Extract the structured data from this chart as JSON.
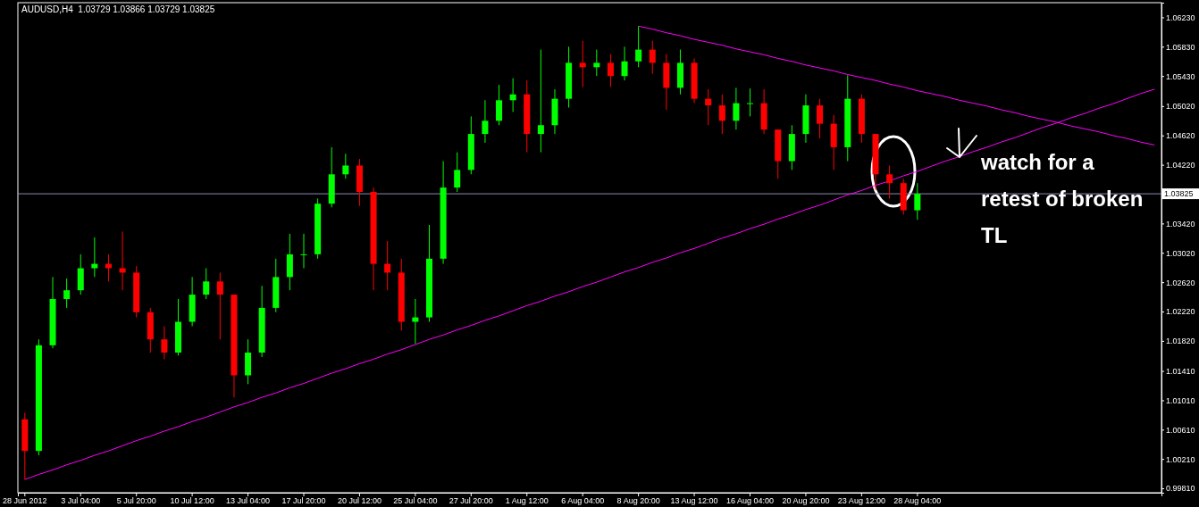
{
  "chart_data": {
    "type": "candlestick",
    "title": "AUDUSD,H4  1.03729 1.03866 1.03729 1.03825",
    "categories": [
      "28 Jun 2012",
      null,
      null,
      null,
      "3 Jul 04:00",
      null,
      null,
      null,
      "5 Jul 20:00",
      null,
      null,
      null,
      "10 Jul 12:00",
      null,
      null,
      null,
      "13 Jul 04:00",
      null,
      null,
      null,
      "17 Jul 20:00",
      null,
      null,
      null,
      "20 Jul 12:00",
      null,
      null,
      null,
      "25 Jul 04:00",
      null,
      null,
      null,
      "27 Jul 20:00",
      null,
      null,
      null,
      "1 Aug 12:00",
      null,
      null,
      null,
      "6 Aug 04:00",
      null,
      null,
      null,
      "8 Aug 20:00",
      null,
      null,
      null,
      "13 Aug 12:00",
      null,
      null,
      null,
      "16 Aug 04:00",
      null,
      null,
      null,
      "20 Aug 20:00",
      null,
      null,
      null,
      "23 Aug 12:00",
      null,
      null,
      null,
      "28 Aug 04:00",
      null,
      null,
      null,
      null,
      null,
      null,
      null,
      null,
      null,
      null,
      null,
      null,
      null,
      null,
      null,
      null,
      null
    ],
    "ohlc": [
      [
        1.0075,
        1.0084,
        0.9993,
        1.0032
      ],
      [
        1.0032,
        1.0184,
        1.0026,
        1.0176
      ],
      [
        1.0176,
        1.0269,
        1.0172,
        1.0239
      ],
      [
        1.0239,
        1.0267,
        1.0227,
        1.0251
      ],
      [
        1.0251,
        1.03,
        1.0245,
        1.0281
      ],
      [
        1.0281,
        1.0323,
        1.0269,
        1.0287
      ],
      [
        1.0287,
        1.03,
        1.0263,
        1.0281
      ],
      [
        1.0281,
        1.0331,
        1.0251,
        1.0275
      ],
      [
        1.0275,
        1.0284,
        1.0214,
        1.0221
      ],
      [
        1.0221,
        1.0227,
        1.0166,
        1.0184
      ],
      [
        1.0184,
        1.0202,
        1.0157,
        1.0166
      ],
      [
        1.0166,
        1.0239,
        1.0162,
        1.0208
      ],
      [
        1.0208,
        1.0269,
        1.0202,
        1.0245
      ],
      [
        1.0245,
        1.0281,
        1.0239,
        1.0263
      ],
      [
        1.0263,
        1.0275,
        1.0184,
        1.0245
      ],
      [
        1.0245,
        1.0245,
        1.0105,
        1.0135
      ],
      [
        1.0135,
        1.0184,
        1.0123,
        1.0166
      ],
      [
        1.0166,
        1.0257,
        1.016,
        1.0227
      ],
      [
        1.0227,
        1.0294,
        1.0221,
        1.0269
      ],
      [
        1.0269,
        1.0328,
        1.0251,
        1.03
      ],
      [
        1.03,
        1.0328,
        1.0281,
        1.03
      ],
      [
        1.03,
        1.0376,
        1.0294,
        1.0369
      ],
      [
        1.0369,
        1.0446,
        1.0364,
        1.0409
      ],
      [
        1.0409,
        1.0437,
        1.0403,
        1.0421
      ],
      [
        1.0421,
        1.043,
        1.0366,
        1.0385
      ],
      [
        1.0385,
        1.0391,
        1.0251,
        1.0287
      ],
      [
        1.0287,
        1.0318,
        1.0251,
        1.0275
      ],
      [
        1.0275,
        1.0294,
        1.0196,
        1.0208
      ],
      [
        1.0208,
        1.0239,
        1.0178,
        1.0214
      ],
      [
        1.0214,
        1.034,
        1.0208,
        1.0294
      ],
      [
        1.0294,
        1.0427,
        1.0287,
        1.0391
      ],
      [
        1.0391,
        1.0439,
        1.0385,
        1.0415
      ],
      [
        1.0415,
        1.0488,
        1.0409,
        1.0464
      ],
      [
        1.0464,
        1.051,
        1.0452,
        1.0482
      ],
      [
        1.0482,
        1.0531,
        1.0476,
        1.051
      ],
      [
        1.051,
        1.054,
        1.0494,
        1.0518
      ],
      [
        1.0518,
        1.0537,
        1.0439,
        1.0464
      ],
      [
        1.0464,
        1.0579,
        1.0439,
        1.0476
      ],
      [
        1.0476,
        1.0525,
        1.0464,
        1.0512
      ],
      [
        1.0512,
        1.0583,
        1.05,
        1.0561
      ],
      [
        1.0561,
        1.0591,
        1.0528,
        1.0555
      ],
      [
        1.0555,
        1.0579,
        1.0543,
        1.0561
      ],
      [
        1.0561,
        1.0573,
        1.0528,
        1.0543
      ],
      [
        1.0543,
        1.0583,
        1.0537,
        1.0563
      ],
      [
        1.0563,
        1.0611,
        1.0555,
        1.0579
      ],
      [
        1.0579,
        1.0591,
        1.0546,
        1.0561
      ],
      [
        1.0561,
        1.0573,
        1.0497,
        1.0527
      ],
      [
        1.0527,
        1.0579,
        1.0518,
        1.0561
      ],
      [
        1.0561,
        1.0567,
        1.0506,
        1.0512
      ],
      [
        1.0512,
        1.0525,
        1.0476,
        1.0503
      ],
      [
        1.0503,
        1.0518,
        1.0464,
        1.0482
      ],
      [
        1.0482,
        1.0527,
        1.047,
        1.0506
      ],
      [
        1.0506,
        1.0526,
        1.0488,
        1.0506
      ],
      [
        1.0506,
        1.0525,
        1.0464,
        1.047
      ],
      [
        1.047,
        1.047,
        1.0403,
        1.0427
      ],
      [
        1.0427,
        1.0476,
        1.0415,
        1.0464
      ],
      [
        1.0464,
        1.0518,
        1.0452,
        1.0503
      ],
      [
        1.0503,
        1.0512,
        1.0458,
        1.0478
      ],
      [
        1.0478,
        1.049,
        1.0415,
        1.0446
      ],
      [
        1.0446,
        1.0544,
        1.0427,
        1.0512
      ],
      [
        1.0512,
        1.0518,
        1.0452,
        1.0464
      ],
      [
        1.0464,
        1.0464,
        1.0388,
        1.0409
      ],
      [
        1.0409,
        1.0421,
        1.0376,
        1.0397
      ],
      [
        1.0397,
        1.0403,
        1.0354,
        1.036
      ],
      [
        1.036,
        1.0397,
        1.0347,
        1.03825
      ],
      null,
      null,
      null,
      null,
      null,
      null,
      null,
      null,
      null,
      null,
      null,
      null,
      null,
      null,
      null,
      null,
      null
    ],
    "colors": [
      "#ff0000",
      "#00ff00",
      "#00ff00",
      "#00ff00",
      "#00ff00",
      "#00ff00",
      "#ff0000",
      "#ff0000",
      "#ff0000",
      "#ff0000",
      "#ff0000",
      "#00ff00",
      "#00ff00",
      "#00ff00",
      "#ff0000",
      "#ff0000",
      "#00ff00",
      "#00ff00",
      "#00ff00",
      "#00ff00",
      "#00ff00",
      "#00ff00",
      "#00ff00",
      "#00ff00",
      "#ff0000",
      "#ff0000",
      "#ff0000",
      "#ff0000",
      "#00ff00",
      "#00ff00",
      "#00ff00",
      "#00ff00",
      "#00ff00",
      "#00ff00",
      "#00ff00",
      "#00ff00",
      "#ff0000",
      "#00ff00",
      "#00ff00",
      "#00ff00",
      "#ff0000",
      "#00ff00",
      "#ff0000",
      "#00ff00",
      "#00ff00",
      "#ff0000",
      "#ff0000",
      "#00ff00",
      "#ff0000",
      "#ff0000",
      "#ff0000",
      "#00ff00",
      "#00ff00",
      "#ff0000",
      "#ff0000",
      "#00ff00",
      "#00ff00",
      "#ff0000",
      "#ff0000",
      "#00ff00",
      "#ff0000",
      "#ff0000",
      "#ff0000",
      "#ff0000",
      "#00ff00",
      null,
      null,
      null,
      null,
      null,
      null,
      null,
      null,
      null,
      null,
      null,
      null,
      null,
      null,
      null,
      null,
      null
    ],
    "series": [
      {
        "type": "line",
        "color": "#ff00ff",
        "values": [
          0.9993,
          1.0,
          1.0006,
          1.0013,
          1.0019,
          1.0026,
          1.0032,
          1.0039,
          1.0046,
          1.0052,
          1.0059,
          1.0065,
          1.0072,
          1.0078,
          1.0085,
          1.0092,
          1.0098,
          1.0105,
          1.0111,
          1.0118,
          1.0124,
          1.0131,
          1.0138,
          1.0144,
          1.0151,
          1.0157,
          1.0164,
          1.017,
          1.0177,
          1.0184,
          1.019,
          1.0197,
          1.0203,
          1.021,
          1.0216,
          1.0223,
          1.023,
          1.0236,
          1.0243,
          1.0249,
          1.0256,
          1.0262,
          1.0269,
          1.0276,
          1.0282,
          1.0289,
          1.0295,
          1.0302,
          1.0308,
          1.0315,
          1.0322,
          1.0328,
          1.0335,
          1.0341,
          1.0348,
          1.0354,
          1.0361,
          1.0367,
          1.0374,
          1.0381,
          1.0387,
          1.0394,
          1.04,
          1.0407,
          1.0413,
          1.042,
          1.0427,
          1.0433,
          1.044,
          1.0446,
          1.0453,
          1.0459,
          1.0466,
          1.0473,
          1.0479,
          1.0486,
          1.0492,
          1.0499,
          1.0505,
          1.0512,
          1.0519,
          1.0525
        ]
      },
      {
        "type": "line",
        "color": "#ff00ff",
        "values": [
          null,
          null,
          null,
          null,
          null,
          null,
          null,
          null,
          null,
          null,
          null,
          null,
          null,
          null,
          null,
          null,
          null,
          null,
          null,
          null,
          null,
          null,
          null,
          null,
          null,
          null,
          null,
          null,
          null,
          null,
          null,
          null,
          null,
          null,
          null,
          null,
          null,
          null,
          null,
          null,
          null,
          null,
          null,
          null,
          1.0611,
          1.0607,
          1.0602,
          1.0598,
          1.0593,
          1.0589,
          1.0585,
          1.058,
          1.0576,
          1.0572,
          1.0567,
          1.0563,
          1.0558,
          1.0554,
          1.055,
          1.0545,
          1.0541,
          1.0537,
          1.0532,
          1.0528,
          1.0523,
          1.0519,
          1.0515,
          1.051,
          1.0506,
          1.0502,
          1.0497,
          1.0493,
          1.0488,
          1.0484,
          1.048,
          1.0475,
          1.0471,
          1.0467,
          1.0462,
          1.0458,
          1.0453,
          1.0449
        ]
      }
    ],
    "ylim": [
      0.9975,
      1.0643
    ],
    "yticks": [
      {
        "value": 1.0623,
        "label": "1.06230"
      },
      {
        "value": 1.0583,
        "label": "1.05830"
      },
      {
        "value": 1.0543,
        "label": "1.05430"
      },
      {
        "value": 1.0502,
        "label": "1.05020"
      },
      {
        "value": 1.0462,
        "label": "1.04620"
      },
      {
        "value": 1.0422,
        "label": "1.04220"
      },
      {
        "value": 1.0342,
        "label": "1.03420"
      },
      {
        "value": 1.0302,
        "label": "1.03020"
      },
      {
        "value": 1.0262,
        "label": "1.02620"
      },
      {
        "value": 1.0222,
        "label": "1.02220"
      },
      {
        "value": 1.0182,
        "label": "1.01820"
      },
      {
        "value": 1.0141,
        "label": "1.01410"
      },
      {
        "value": 1.0101,
        "label": "1.01010"
      },
      {
        "value": 1.0061,
        "label": "1.00610"
      },
      {
        "value": 1.0021,
        "label": "1.00210"
      },
      {
        "value": 0.9981,
        "label": "0.99810"
      }
    ],
    "ref_lines": [
      {
        "axis": "y",
        "value": 1.03825,
        "label": "1.03825",
        "color": "#8c8cb4"
      }
    ],
    "annotations": [
      "watch for a retest of broken TL"
    ]
  }
}
